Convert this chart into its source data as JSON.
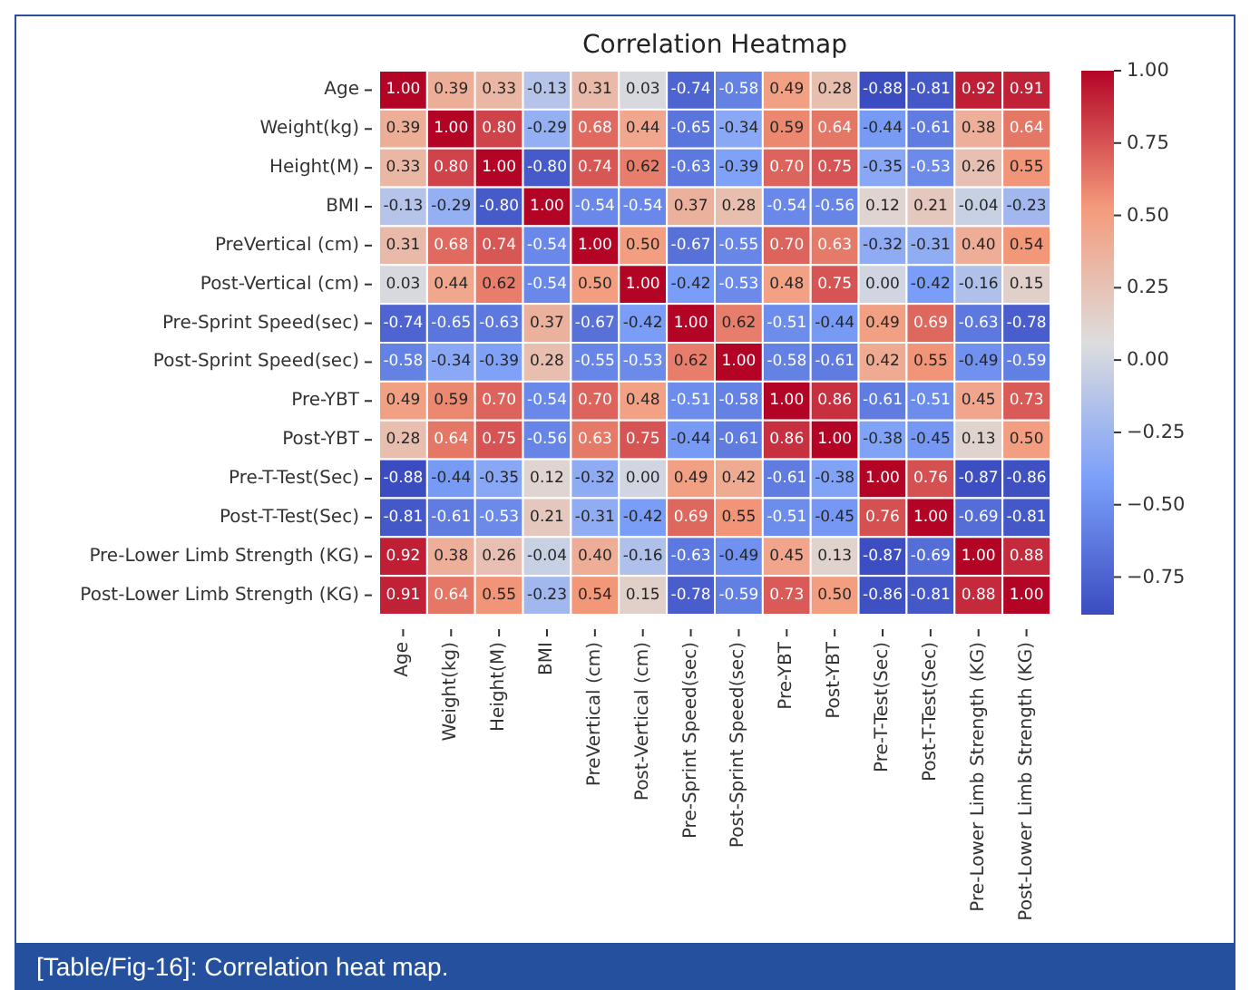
{
  "chart_data": {
    "type": "heatmap",
    "title": "Correlation Heatmap",
    "categories": [
      "Age",
      "Weight(kg)",
      "Height(M)",
      "BMI",
      "PreVertical (cm)",
      "Post-Vertical (cm)",
      "Pre-Sprint Speed(sec)",
      "Post-Sprint Speed(sec)",
      "Pre-YBT",
      "Post-YBT",
      "Pre-T-Test(Sec)",
      "Post-T-Test(Sec)",
      "Pre-Lower Limb Strength (KG)",
      "Post-Lower Limb Strength (KG)"
    ],
    "y_categories": [
      "Age",
      "Weight(kg)",
      "Height(M)",
      "BMI",
      "PreVertical (cm)",
      "Post-Vertical (cm)",
      "Pre-Sprint Speed(sec)",
      "Post-Sprint Speed(sec)",
      "Pre-YBT",
      "Post-YBT",
      "Pre-T-Test(Sec)",
      "Post-T-Test(Sec)",
      "Pre-Lower Limb Strength (KG)",
      "Post-Lower Limb Strength (KG)"
    ],
    "cells": [
      [
        1.0,
        0.39,
        0.33,
        -0.13,
        0.31,
        0.03,
        -0.74,
        -0.58,
        0.49,
        0.28,
        -0.88,
        -0.81,
        0.92,
        0.91
      ],
      [
        0.39,
        1.0,
        0.8,
        -0.29,
        0.68,
        0.44,
        -0.65,
        -0.34,
        0.59,
        0.64,
        -0.44,
        -0.61,
        0.38,
        0.64
      ],
      [
        0.33,
        0.8,
        1.0,
        -0.8,
        0.74,
        0.62,
        -0.63,
        -0.39,
        0.7,
        0.75,
        -0.35,
        -0.53,
        0.26,
        0.55
      ],
      [
        -0.13,
        -0.29,
        -0.8,
        1.0,
        -0.54,
        -0.54,
        0.37,
        0.28,
        -0.54,
        -0.56,
        0.12,
        0.21,
        -0.04,
        -0.23
      ],
      [
        0.31,
        0.68,
        0.74,
        -0.54,
        1.0,
        0.5,
        -0.67,
        -0.55,
        0.7,
        0.63,
        -0.32,
        -0.31,
        0.4,
        0.54
      ],
      [
        0.03,
        0.44,
        0.62,
        -0.54,
        0.5,
        1.0,
        -0.42,
        -0.53,
        0.48,
        0.75,
        0.0,
        -0.42,
        -0.16,
        0.15
      ],
      [
        -0.74,
        -0.65,
        -0.63,
        0.37,
        -0.67,
        -0.42,
        1.0,
        0.62,
        -0.51,
        -0.44,
        0.49,
        0.69,
        -0.63,
        -0.78
      ],
      [
        -0.58,
        -0.34,
        -0.39,
        0.28,
        -0.55,
        -0.53,
        0.62,
        1.0,
        -0.58,
        -0.61,
        0.42,
        0.55,
        -0.49,
        -0.59
      ],
      [
        0.49,
        0.59,
        0.7,
        -0.54,
        0.7,
        0.48,
        -0.51,
        -0.58,
        1.0,
        0.86,
        -0.61,
        -0.51,
        0.45,
        0.73
      ],
      [
        0.28,
        0.64,
        0.75,
        -0.56,
        0.63,
        0.75,
        -0.44,
        -0.61,
        0.86,
        1.0,
        -0.38,
        -0.45,
        0.13,
        0.5
      ],
      [
        -0.88,
        -0.44,
        -0.35,
        0.12,
        -0.32,
        0.0,
        0.49,
        0.42,
        -0.61,
        -0.38,
        1.0,
        0.76,
        -0.87,
        -0.86
      ],
      [
        -0.81,
        -0.61,
        -0.53,
        0.21,
        -0.31,
        -0.42,
        0.69,
        0.55,
        -0.51,
        -0.45,
        0.76,
        1.0,
        -0.69,
        -0.81
      ],
      [
        0.92,
        0.38,
        0.26,
        -0.04,
        0.4,
        -0.16,
        -0.63,
        -0.49,
        0.45,
        0.13,
        -0.87,
        -0.69,
        1.0,
        0.88
      ],
      [
        0.91,
        0.64,
        0.55,
        -0.23,
        0.54,
        0.15,
        -0.78,
        -0.59,
        0.73,
        0.5,
        -0.86,
        -0.81,
        0.88,
        1.0
      ]
    ],
    "cell_labels": [
      [
        "1.00",
        "0.39",
        "0.33",
        "-0.13",
        "0.31",
        "0.03",
        "-0.74",
        "-0.58",
        "0.49",
        "0.28",
        "-0.88",
        "-0.81",
        "0.92",
        "0.91"
      ],
      [
        "0.39",
        "1.00",
        "0.80",
        "-0.29",
        "0.68",
        "0.44",
        "-0.65",
        "-0.34",
        "0.59",
        "0.64",
        "-0.44",
        "-0.61",
        "0.38",
        "0.64"
      ],
      [
        "0.33",
        "0.80",
        "1.00",
        "-0.80",
        "0.74",
        "0.62",
        "-0.63",
        "-0.39",
        "0.70",
        "0.75",
        "-0.35",
        "-0.53",
        "0.26",
        "0.55"
      ],
      [
        "-0.13",
        "-0.29",
        "-0.80",
        "1.00",
        "-0.54",
        "-0.54",
        "0.37",
        "0.28",
        "-0.54",
        "-0.56",
        "0.12",
        "0.21",
        "-0.04",
        "-0.23"
      ],
      [
        "0.31",
        "0.68",
        "0.74",
        "-0.54",
        "1.00",
        "0.50",
        "-0.67",
        "-0.55",
        "0.70",
        "0.63",
        "-0.32",
        "-0.31",
        "0.40",
        "0.54"
      ],
      [
        "0.03",
        "0.44",
        "0.62",
        "-0.54",
        "0.50",
        "1.00",
        "-0.42",
        "-0.53",
        "0.48",
        "0.75",
        "0.00",
        "-0.42",
        "-0.16",
        "0.15"
      ],
      [
        "-0.74",
        "-0.65",
        "-0.63",
        "0.37",
        "-0.67",
        "-0.42",
        "1.00",
        "0.62",
        "-0.51",
        "-0.44",
        "0.49",
        "0.69",
        "-0.63",
        "-0.78"
      ],
      [
        "-0.58",
        "-0.34",
        "-0.39",
        "0.28",
        "-0.55",
        "-0.53",
        "0.62",
        "1.00",
        "-0.58",
        "-0.61",
        "0.42",
        "0.55",
        "-0.49",
        "-0.59"
      ],
      [
        "0.49",
        "0.59",
        "0.70",
        "-0.54",
        "0.70",
        "0.48",
        "-0.51",
        "-0.58",
        "1.00",
        "0.86",
        "-0.61",
        "-0.51",
        "0.45",
        "0.73"
      ],
      [
        "0.28",
        "0.64",
        "0.75",
        "-0.56",
        "0.63",
        "0.75",
        "-0.44",
        "-0.61",
        "0.86",
        "1.00",
        "-0.38",
        "-0.45",
        "0.13",
        "0.50"
      ],
      [
        "-0.88",
        "-0.44",
        "-0.35",
        "0.12",
        "-0.32",
        "0.00",
        "0.49",
        "0.42",
        "-0.61",
        "-0.38",
        "1.00",
        "0.76",
        "-0.87",
        "-0.86"
      ],
      [
        "-0.81",
        "-0.61",
        "-0.53",
        "0.21",
        "-0.31",
        "-0.42",
        "0.69",
        "0.55",
        "-0.51",
        "-0.45",
        "0.76",
        "1.00",
        "-0.69",
        "-0.81"
      ],
      [
        "0.92",
        "0.38",
        "0.26",
        "-0.04",
        "0.40",
        "-0.16",
        "-0.63",
        "-0.49",
        "0.45",
        "0.13",
        "-0.87",
        "-0.69",
        "1.00",
        "0.88"
      ],
      [
        "0.91",
        "0.64",
        "0.55",
        "-0.23",
        "0.54",
        "0.15",
        "-0.78",
        "-0.59",
        "0.73",
        "0.50",
        "-0.86",
        "-0.81",
        "0.88",
        "1.00"
      ]
    ],
    "data_labels": true,
    "clim": [
      -0.88,
      1.0
    ],
    "cticks": [
      {
        "value": -0.75,
        "label": "−0.75"
      },
      {
        "value": -0.5,
        "label": "−0.50"
      },
      {
        "value": -0.25,
        "label": "−0.25"
      },
      {
        "value": 0,
        "label": "0.00"
      },
      {
        "value": 0.25,
        "label": "0.25"
      },
      {
        "value": 0.5,
        "label": "0.50"
      },
      {
        "value": 0.75,
        "label": "0.75"
      },
      {
        "value": 1,
        "label": "1.00"
      }
    ],
    "annotations": [
      "[Table/Fig-16]: Correlation heat map."
    ]
  }
}
